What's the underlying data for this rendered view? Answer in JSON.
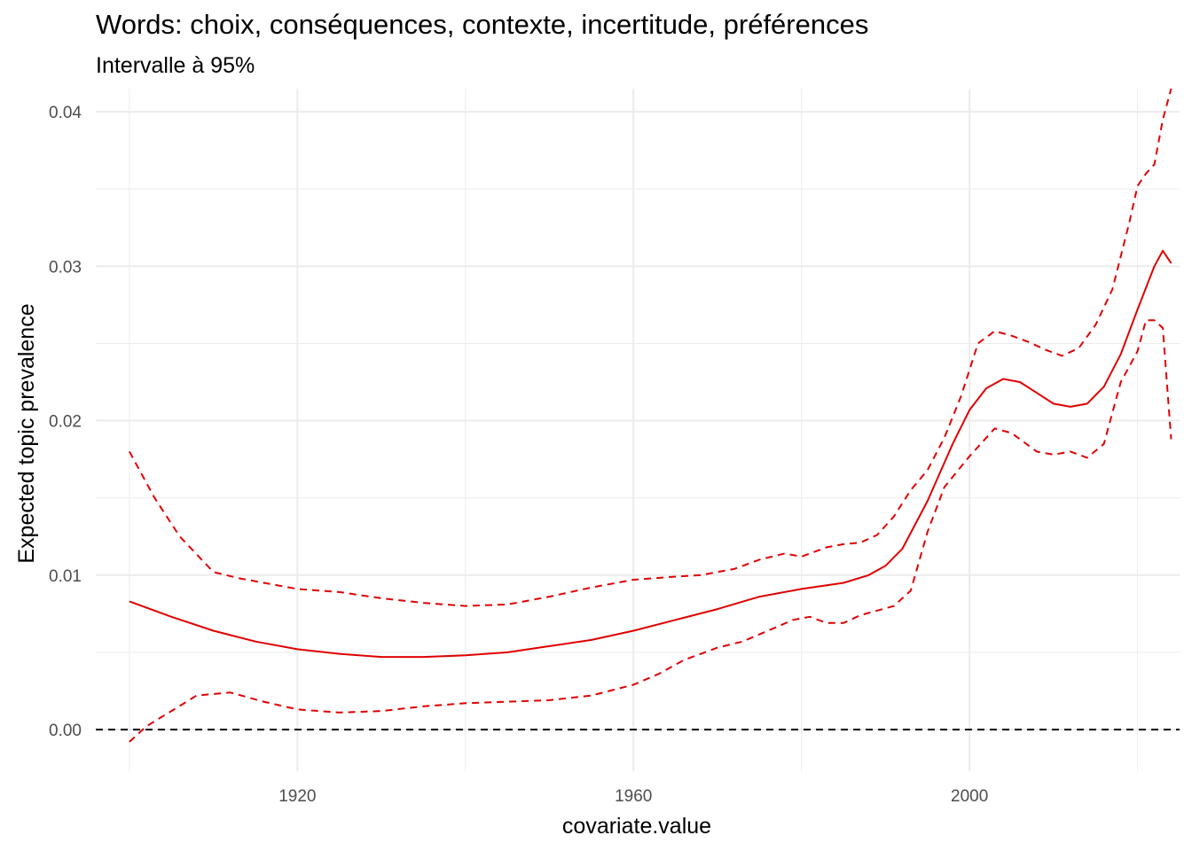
{
  "chart_data": {
    "type": "line",
    "title": "Words: choix, conséquences, contexte, incertitude, préférences",
    "subtitle": "Intervalle à 95%",
    "xlabel": "covariate.value",
    "ylabel": "Expected topic prevalence",
    "xlim": [
      1896,
      2025
    ],
    "ylim": [
      -0.0027,
      0.0415
    ],
    "x_ticks": [
      1920,
      1960,
      2000
    ],
    "x_tick_labels": [
      "1920",
      "1960",
      "2000"
    ],
    "y_ticks": [
      0,
      0.01,
      0.02,
      0.03,
      0.04
    ],
    "y_tick_labels": [
      "0.00",
      "0.01",
      "0.02",
      "0.03",
      "0.04"
    ],
    "grid": true,
    "colors": {
      "series": "#e00000",
      "reference": "#000000",
      "grid": "#ebebeb"
    },
    "reference_line": {
      "y": 0,
      "style": "dashed"
    },
    "series": [
      {
        "role": "estimate",
        "style": "solid",
        "x": [
          1900,
          1905,
          1910,
          1915,
          1920,
          1925,
          1930,
          1935,
          1940,
          1945,
          1950,
          1955,
          1960,
          1965,
          1970,
          1975,
          1980,
          1985,
          1988,
          1990,
          1992,
          1995,
          1998,
          2000,
          2002,
          2004,
          2006,
          2008,
          2010,
          2012,
          2014,
          2016,
          2018,
          2020,
          2022,
          2023,
          2024
        ],
        "values": [
          0.0083,
          0.0073,
          0.0064,
          0.0057,
          0.0052,
          0.0049,
          0.0047,
          0.0047,
          0.0048,
          0.005,
          0.0054,
          0.0058,
          0.0064,
          0.0071,
          0.0078,
          0.0086,
          0.0091,
          0.0095,
          0.01,
          0.0106,
          0.0117,
          0.0148,
          0.0185,
          0.0207,
          0.0221,
          0.0227,
          0.0225,
          0.0218,
          0.0211,
          0.0209,
          0.0211,
          0.0222,
          0.0243,
          0.0272,
          0.03,
          0.031,
          0.0302
        ]
      },
      {
        "role": "upper",
        "style": "dashed",
        "x": [
          1900,
          1903,
          1906,
          1910,
          1913,
          1916,
          1920,
          1925,
          1930,
          1935,
          1940,
          1945,
          1950,
          1955,
          1960,
          1965,
          1968,
          1972,
          1975,
          1978,
          1980,
          1983,
          1985,
          1987,
          1989,
          1991,
          1993,
          1995,
          1997,
          1999,
          2001,
          2003,
          2005,
          2007,
          2009,
          2011,
          2013,
          2015,
          2017,
          2019,
          2020,
          2021,
          2022,
          2023,
          2024
        ],
        "values": [
          0.018,
          0.015,
          0.0125,
          0.0102,
          0.0098,
          0.0095,
          0.0091,
          0.0089,
          0.0085,
          0.0082,
          0.008,
          0.0081,
          0.0086,
          0.0092,
          0.0097,
          0.0099,
          0.01,
          0.0104,
          0.011,
          0.0114,
          0.0112,
          0.0118,
          0.012,
          0.0121,
          0.0126,
          0.0138,
          0.0155,
          0.0168,
          0.0189,
          0.0216,
          0.025,
          0.0258,
          0.0255,
          0.0251,
          0.0246,
          0.0242,
          0.0247,
          0.0262,
          0.0285,
          0.0328,
          0.0352,
          0.036,
          0.0366,
          0.0395,
          0.0415
        ]
      },
      {
        "role": "lower",
        "style": "dashed",
        "x": [
          1900,
          1902,
          1905,
          1908,
          1912,
          1916,
          1920,
          1925,
          1930,
          1935,
          1940,
          1945,
          1950,
          1955,
          1960,
          1963,
          1966,
          1970,
          1973,
          1976,
          1979,
          1981,
          1983,
          1985,
          1987,
          1989,
          1991,
          1993,
          1995,
          1997,
          2000,
          2003,
          2005,
          2008,
          2010,
          2012,
          2014,
          2016,
          2018,
          2020,
          2021,
          2022,
          2023,
          2024
        ],
        "values": [
          -0.0008,
          0.0002,
          0.0012,
          0.0022,
          0.0024,
          0.0018,
          0.0013,
          0.0011,
          0.0012,
          0.0015,
          0.0017,
          0.0018,
          0.0019,
          0.0022,
          0.0029,
          0.0036,
          0.0045,
          0.0053,
          0.0057,
          0.0064,
          0.0071,
          0.0073,
          0.0069,
          0.0069,
          0.0074,
          0.0077,
          0.008,
          0.009,
          0.0128,
          0.0157,
          0.0177,
          0.0195,
          0.0192,
          0.018,
          0.0178,
          0.018,
          0.0176,
          0.0185,
          0.0225,
          0.0245,
          0.0265,
          0.0265,
          0.026,
          0.0188
        ]
      }
    ]
  }
}
